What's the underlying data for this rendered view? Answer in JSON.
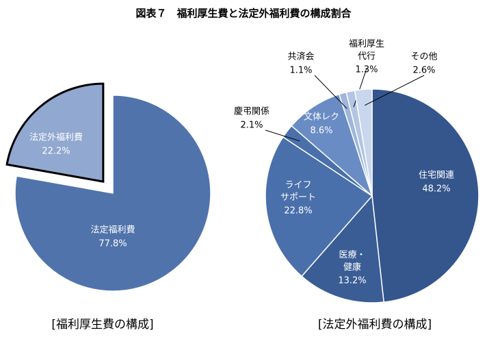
{
  "title": "図表７　福利厚生費と法定外福利費の構成割合",
  "chart_data": [
    {
      "type": "pie",
      "title": "[福利厚生費の構成]",
      "categories": [
        "法定福利費",
        "法定外福利費"
      ],
      "values": [
        77.8,
        22.2
      ],
      "value_labels": [
        "77.8%",
        "22.2%"
      ],
      "colors": [
        "#5073ab",
        "#91a8d0"
      ],
      "exploded": [
        false,
        true
      ]
    },
    {
      "type": "pie",
      "title": "[法定外福利費の構成]",
      "categories": [
        "住宅関連",
        "医療・\n健康",
        "ライフ\nサポート",
        "慶弔関係",
        "文体レク",
        "共済会",
        "福利厚生\n代行",
        "その他"
      ],
      "values": [
        48.2,
        13.2,
        22.8,
        2.1,
        8.6,
        1.1,
        1.3,
        2.6
      ],
      "value_labels": [
        "48.2%",
        "13.2%",
        "22.8%",
        "2.1%",
        "8.6%",
        "1.1%",
        "1.3%",
        "2.6%"
      ],
      "colors": [
        "#34568c",
        "#3a5d95",
        "#4a70ab",
        "#4a70ab",
        "#6a8cc4",
        "#9fb5dc",
        "#b3c5e4",
        "#c8d6ee"
      ]
    }
  ]
}
